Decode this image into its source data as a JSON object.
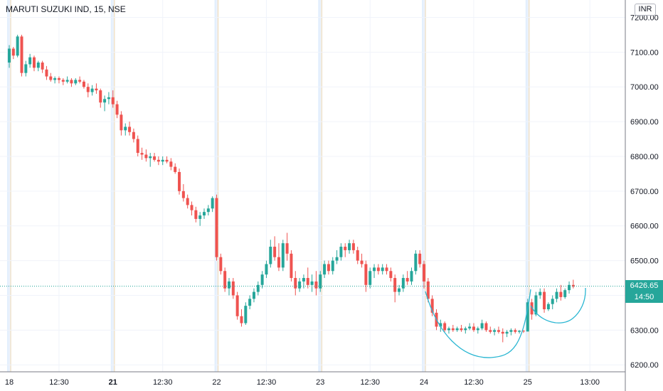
{
  "header": {
    "title": "MARUTI SUZUKI IND, 15, NSE"
  },
  "currency_label": "INR",
  "last_price": {
    "value": "6426.65",
    "countdown": "14:50"
  },
  "colors": {
    "up": "#26a69a",
    "down": "#ef5350",
    "drawing": "#29b6d2",
    "grid": "#f0f3fa",
    "session_blue": "#e3effd",
    "session_orange": "#ffe0b2"
  },
  "chart_data": {
    "type": "candlestick",
    "title": "MARUTI SUZUKI IND, 15, NSE",
    "ylim": [
      6180,
      7250
    ],
    "y_ticks": [
      6200,
      6300,
      6400,
      6500,
      6600,
      6700,
      6800,
      6900,
      7000,
      7100,
      7200
    ],
    "y_tick_labels": [
      "6200.00",
      "6300.00",
      "6400.00",
      "6500.00",
      "6600.00",
      "6700.00",
      "6800.00",
      "6900.00",
      "7000.00",
      "7100.00",
      "7200.00"
    ],
    "x_tick_labels": [
      {
        "label": "18",
        "bar": 0,
        "strong": false
      },
      {
        "label": "12:30",
        "bar": 12,
        "strong": false
      },
      {
        "label": "21",
        "bar": 25,
        "strong": true
      },
      {
        "label": "12:30",
        "bar": 37,
        "strong": false
      },
      {
        "label": "22",
        "bar": 50,
        "strong": false
      },
      {
        "label": "12:30",
        "bar": 62,
        "strong": false
      },
      {
        "label": "23",
        "bar": 75,
        "strong": false
      },
      {
        "label": "12:30",
        "bar": 87,
        "strong": false
      },
      {
        "label": "24",
        "bar": 100,
        "strong": false
      },
      {
        "label": "12:30",
        "bar": 112,
        "strong": false
      },
      {
        "label": "25",
        "bar": 125,
        "strong": false
      },
      {
        "label": "13:00",
        "bar": 140,
        "strong": false
      }
    ],
    "session_starts": [
      0,
      25,
      50,
      75,
      100,
      125
    ],
    "last_price": 6426.65,
    "candles": [
      [
        7070,
        7120,
        7055,
        7110
      ],
      [
        7110,
        7115,
        7080,
        7090
      ],
      [
        7090,
        7150,
        7085,
        7145
      ],
      [
        7145,
        7150,
        7030,
        7040
      ],
      [
        7040,
        7075,
        7030,
        7065
      ],
      [
        7065,
        7095,
        7055,
        7085
      ],
      [
        7085,
        7090,
        7045,
        7055
      ],
      [
        7055,
        7075,
        7045,
        7070
      ],
      [
        7070,
        7075,
        7040,
        7050
      ],
      [
        7050,
        7060,
        7020,
        7030
      ],
      [
        7030,
        7040,
        7015,
        7020
      ],
      [
        7020,
        7030,
        7010,
        7025
      ],
      [
        7025,
        7030,
        7010,
        7020
      ],
      [
        7020,
        7025,
        7005,
        7015
      ],
      [
        7015,
        7030,
        7010,
        7020
      ],
      [
        7020,
        7025,
        7000,
        7010
      ],
      [
        7010,
        7025,
        7005,
        7020
      ],
      [
        7020,
        7030,
        7010,
        7015
      ],
      [
        7015,
        7020,
        6995,
        7000
      ],
      [
        7000,
        7010,
        6970,
        6985
      ],
      [
        6985,
        7005,
        6975,
        6995
      ],
      [
        6995,
        7010,
        6980,
        6990
      ],
      [
        6990,
        6995,
        6940,
        6955
      ],
      [
        6955,
        6975,
        6930,
        6965
      ],
      [
        6965,
        6985,
        6950,
        6970
      ],
      [
        6970,
        6990,
        6940,
        6950
      ],
      [
        6950,
        6960,
        6910,
        6920
      ],
      [
        6920,
        6930,
        6860,
        6875
      ],
      [
        6875,
        6895,
        6860,
        6885
      ],
      [
        6885,
        6900,
        6860,
        6870
      ],
      [
        6870,
        6880,
        6840,
        6850
      ],
      [
        6850,
        6860,
        6800,
        6810
      ],
      [
        6810,
        6825,
        6790,
        6805
      ],
      [
        6805,
        6820,
        6785,
        6795
      ],
      [
        6795,
        6810,
        6770,
        6800
      ],
      [
        6800,
        6810,
        6785,
        6790
      ],
      [
        6790,
        6800,
        6775,
        6785
      ],
      [
        6785,
        6800,
        6775,
        6790
      ],
      [
        6790,
        6800,
        6780,
        6785
      ],
      [
        6785,
        6795,
        6760,
        6770
      ],
      [
        6770,
        6780,
        6750,
        6755
      ],
      [
        6755,
        6765,
        6690,
        6700
      ],
      [
        6700,
        6720,
        6670,
        6680
      ],
      [
        6680,
        6690,
        6650,
        6660
      ],
      [
        6660,
        6670,
        6630,
        6645
      ],
      [
        6645,
        6655,
        6610,
        6620
      ],
      [
        6620,
        6640,
        6600,
        6630
      ],
      [
        6630,
        6650,
        6620,
        6640
      ],
      [
        6640,
        6660,
        6630,
        6650
      ],
      [
        6650,
        6685,
        6640,
        6680
      ],
      [
        6680,
        6690,
        6500,
        6510
      ],
      [
        6510,
        6520,
        6460,
        6470
      ],
      [
        6470,
        6480,
        6410,
        6420
      ],
      [
        6420,
        6450,
        6400,
        6440
      ],
      [
        6440,
        6450,
        6390,
        6400
      ],
      [
        6400,
        6410,
        6330,
        6340
      ],
      [
        6340,
        6360,
        6310,
        6320
      ],
      [
        6320,
        6380,
        6315,
        6370
      ],
      [
        6370,
        6400,
        6360,
        6390
      ],
      [
        6390,
        6420,
        6380,
        6410
      ],
      [
        6410,
        6440,
        6400,
        6430
      ],
      [
        6430,
        6470,
        6420,
        6460
      ],
      [
        6460,
        6500,
        6450,
        6490
      ],
      [
        6490,
        6560,
        6480,
        6540
      ],
      [
        6540,
        6570,
        6500,
        6510
      ],
      [
        6510,
        6550,
        6470,
        6480
      ],
      [
        6480,
        6560,
        6470,
        6550
      ],
      [
        6550,
        6580,
        6500,
        6520
      ],
      [
        6520,
        6530,
        6440,
        6450
      ],
      [
        6450,
        6470,
        6400,
        6420
      ],
      [
        6420,
        6450,
        6410,
        6440
      ],
      [
        6440,
        6460,
        6420,
        6450
      ],
      [
        6450,
        6480,
        6420,
        6430
      ],
      [
        6430,
        6460,
        6410,
        6440
      ],
      [
        6440,
        6470,
        6400,
        6420
      ],
      [
        6420,
        6470,
        6410,
        6460
      ],
      [
        6460,
        6500,
        6450,
        6490
      ],
      [
        6490,
        6500,
        6460,
        6470
      ],
      [
        6470,
        6510,
        6460,
        6500
      ],
      [
        6500,
        6530,
        6490,
        6510
      ],
      [
        6510,
        6550,
        6500,
        6540
      ],
      [
        6540,
        6550,
        6510,
        6530
      ],
      [
        6530,
        6560,
        6520,
        6550
      ],
      [
        6550,
        6560,
        6520,
        6530
      ],
      [
        6530,
        6540,
        6490,
        6500
      ],
      [
        6500,
        6520,
        6480,
        6490
      ],
      [
        6490,
        6500,
        6410,
        6430
      ],
      [
        6430,
        6480,
        6420,
        6470
      ],
      [
        6470,
        6490,
        6450,
        6480
      ],
      [
        6480,
        6490,
        6460,
        6470
      ],
      [
        6470,
        6490,
        6460,
        6480
      ],
      [
        6480,
        6490,
        6460,
        6470
      ],
      [
        6470,
        6480,
        6440,
        6450
      ],
      [
        6450,
        6460,
        6380,
        6410
      ],
      [
        6410,
        6430,
        6400,
        6420
      ],
      [
        6420,
        6460,
        6410,
        6450
      ],
      [
        6450,
        6470,
        6430,
        6440
      ],
      [
        6440,
        6480,
        6430,
        6470
      ],
      [
        6470,
        6530,
        6460,
        6520
      ],
      [
        6520,
        6530,
        6480,
        6490
      ],
      [
        6490,
        6500,
        6420,
        6440
      ],
      [
        6440,
        6450,
        6380,
        6390
      ],
      [
        6390,
        6400,
        6340,
        6350
      ],
      [
        6350,
        6360,
        6300,
        6310
      ],
      [
        6310,
        6330,
        6295,
        6320
      ],
      [
        6320,
        6325,
        6295,
        6300
      ],
      [
        6300,
        6310,
        6290,
        6305
      ],
      [
        6305,
        6315,
        6295,
        6300
      ],
      [
        6300,
        6310,
        6295,
        6305
      ],
      [
        6305,
        6315,
        6295,
        6300
      ],
      [
        6300,
        6310,
        6290,
        6305
      ],
      [
        6305,
        6320,
        6300,
        6310
      ],
      [
        6310,
        6320,
        6295,
        6300
      ],
      [
        6300,
        6310,
        6290,
        6305
      ],
      [
        6305,
        6330,
        6300,
        6320
      ],
      [
        6320,
        6325,
        6295,
        6300
      ],
      [
        6300,
        6310,
        6290,
        6295
      ],
      [
        6295,
        6305,
        6285,
        6300
      ],
      [
        6300,
        6310,
        6290,
        6295
      ],
      [
        6295,
        6305,
        6265,
        6290
      ],
      [
        6290,
        6300,
        6280,
        6295
      ],
      [
        6295,
        6305,
        6285,
        6300
      ],
      [
        6300,
        6305,
        6290,
        6295
      ],
      [
        6295,
        6300,
        6290,
        6298
      ],
      [
        6298,
        6300,
        6292,
        6296
      ],
      [
        6296,
        6390,
        6296,
        6380
      ],
      [
        6380,
        6390,
        6330,
        6345
      ],
      [
        6345,
        6410,
        6340,
        6400
      ],
      [
        6400,
        6420,
        6390,
        6410
      ],
      [
        6410,
        6420,
        6350,
        6360
      ],
      [
        6360,
        6380,
        6355,
        6375
      ],
      [
        6375,
        6400,
        6360,
        6390
      ],
      [
        6390,
        6420,
        6380,
        6410
      ],
      [
        6410,
        6430,
        6385,
        6395
      ],
      [
        6395,
        6420,
        6390,
        6415
      ],
      [
        6415,
        6440,
        6405,
        6430
      ],
      [
        6430,
        6445,
        6420,
        6425
      ]
    ],
    "drawings": [
      "cup-curve",
      "handle-curve"
    ]
  }
}
